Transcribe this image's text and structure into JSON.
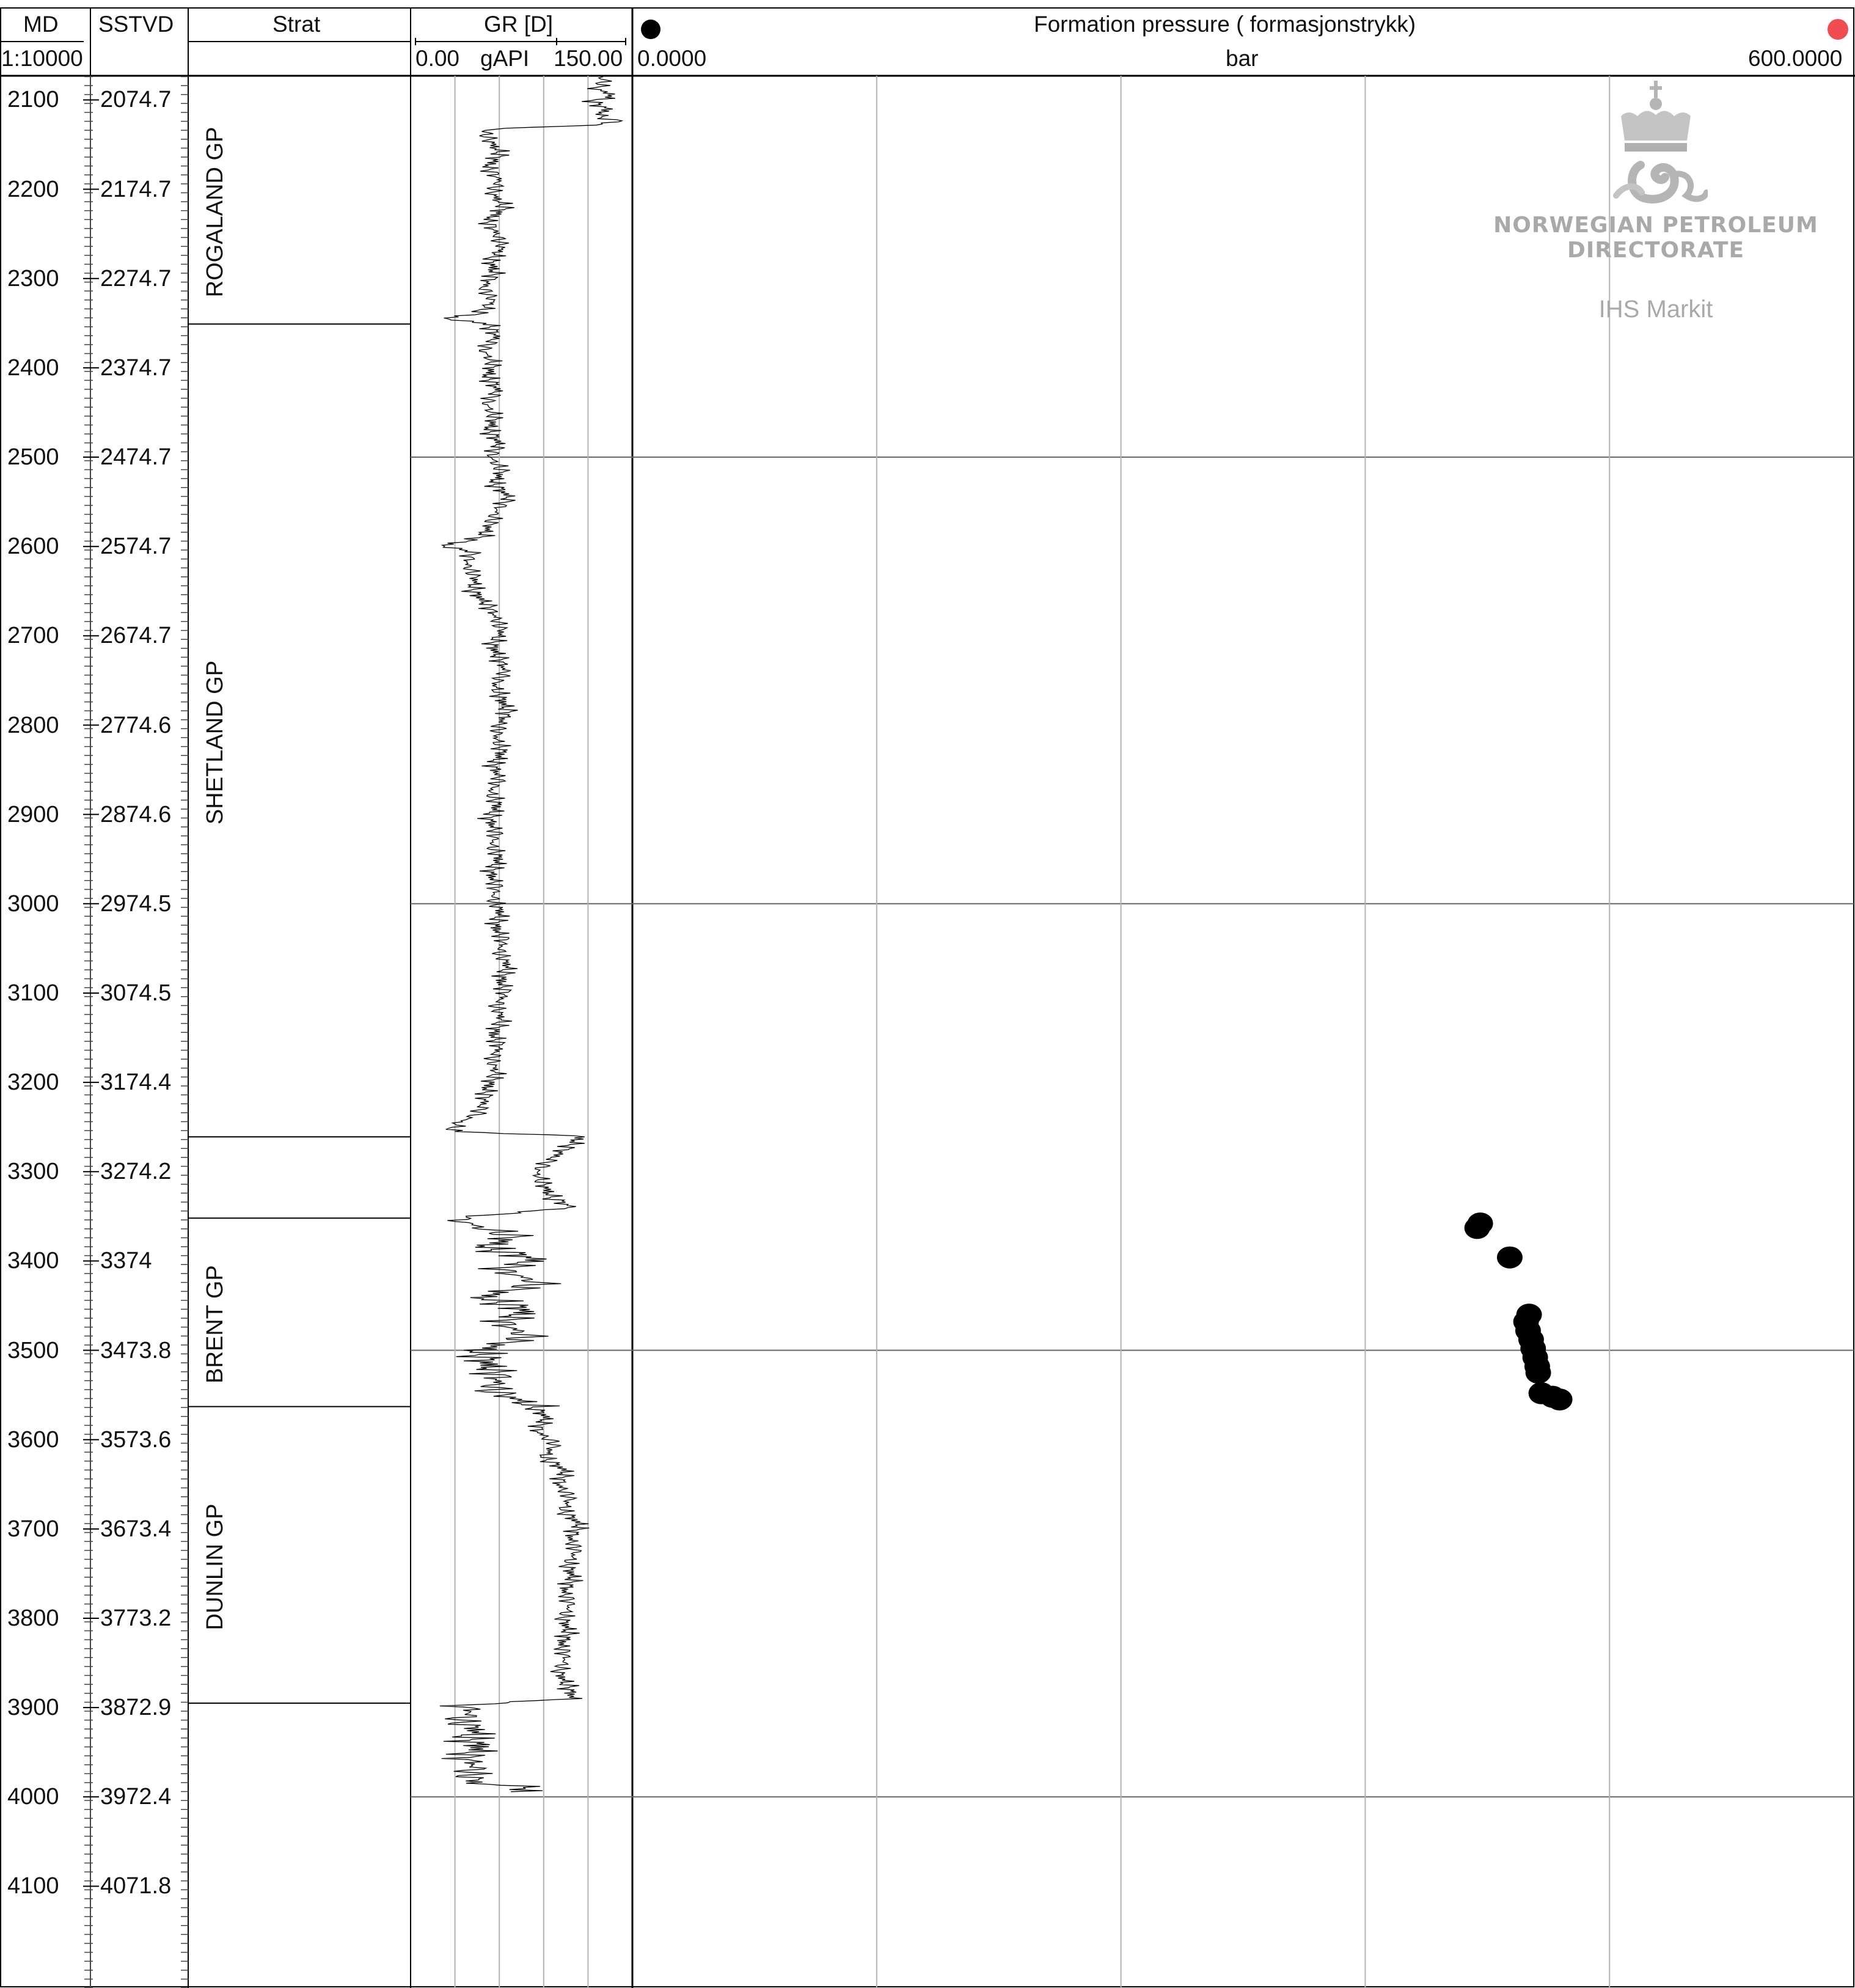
{
  "header": {
    "md": "MD",
    "scale": "1:10000",
    "sstvd": "SSTVD",
    "strat": "Strat",
    "gr_title": "GR [D]",
    "gr_min": "0.00",
    "gr_unit": "gAPI",
    "gr_max": "150.00",
    "fp_title": "Formation pressure ( formasjonstrykk)",
    "fp_min": "0.0000",
    "fp_unit": "bar",
    "fp_max": "600.0000"
  },
  "watermark": {
    "line1": "NORWEGIAN PETROLEUM",
    "line2": "DIRECTORATE",
    "line3": "IHS Markit"
  },
  "colors": {
    "fp_marker": "#000000",
    "fp_marker_right": "#ef4d4d",
    "grid_major": "#666666",
    "grid_minor": "#b3b3b3",
    "trace": "#000000"
  },
  "depth_rows": [
    {
      "md": "2100",
      "sstvd": "2074.7"
    },
    {
      "md": "2200",
      "sstvd": "2174.7"
    },
    {
      "md": "2300",
      "sstvd": "2274.7"
    },
    {
      "md": "2400",
      "sstvd": "2374.7"
    },
    {
      "md": "2500",
      "sstvd": "2474.7"
    },
    {
      "md": "2600",
      "sstvd": "2574.7"
    },
    {
      "md": "2700",
      "sstvd": "2674.7"
    },
    {
      "md": "2800",
      "sstvd": "2774.6"
    },
    {
      "md": "2900",
      "sstvd": "2874.6"
    },
    {
      "md": "3000",
      "sstvd": "2974.5"
    },
    {
      "md": "3100",
      "sstvd": "3074.5"
    },
    {
      "md": "3200",
      "sstvd": "3174.4"
    },
    {
      "md": "3300",
      "sstvd": "3274.2"
    },
    {
      "md": "3400",
      "sstvd": "3374"
    },
    {
      "md": "3500",
      "sstvd": "3473.8"
    },
    {
      "md": "3600",
      "sstvd": "3573.6"
    },
    {
      "md": "3700",
      "sstvd": "3673.4"
    },
    {
      "md": "3800",
      "sstvd": "3773.2"
    },
    {
      "md": "3900",
      "sstvd": "3872.9"
    },
    {
      "md": "4000",
      "sstvd": "3972.4"
    },
    {
      "md": "4100",
      "sstvd": "4071.8"
    }
  ],
  "chart_data": {
    "type": "scatter",
    "title": "Formation pressure ( formasjonstrykk)",
    "depth_range_md": [
      2073,
      4216
    ],
    "tracks": {
      "strat": {
        "units": [
          {
            "name": "ROGALAND GP",
            "top": 2073,
            "base": 2351
          },
          {
            "name": "",
            "top": 2351,
            "base": 3261
          },
          {
            "name": "SHETLAND GP",
            "top": 2351,
            "base": 3261
          },
          {
            "name": "",
            "top": 3261,
            "base": 3352
          },
          {
            "name": "BRENT GP",
            "top": 3352,
            "base": 3563
          },
          {
            "name": "DUNLIN GP",
            "top": 3563,
            "base": 3895
          }
        ],
        "boundaries": [
          2351,
          3261,
          3352,
          3563,
          3895
        ]
      },
      "gr": {
        "xlabel": "gAPI",
        "xlim": [
          0,
          150
        ],
        "profile": [
          [
            2073,
            129
          ],
          [
            2080,
            131
          ],
          [
            2088,
            125
          ],
          [
            2095,
            138
          ],
          [
            2102,
            122
          ],
          [
            2110,
            133
          ],
          [
            2118,
            127
          ],
          [
            2124,
            140
          ],
          [
            2128,
            128
          ],
          [
            2132,
            60
          ],
          [
            2135,
            50
          ],
          [
            2145,
            53
          ],
          [
            2160,
            61
          ],
          [
            2175,
            52
          ],
          [
            2190,
            60
          ],
          [
            2205,
            55
          ],
          [
            2220,
            64
          ],
          [
            2235,
            52
          ],
          [
            2250,
            58
          ],
          [
            2265,
            62
          ],
          [
            2280,
            54
          ],
          [
            2295,
            57
          ],
          [
            2310,
            49
          ],
          [
            2325,
            56
          ],
          [
            2340,
            45
          ],
          [
            2345,
            20
          ],
          [
            2350,
            52
          ],
          [
            2365,
            58
          ],
          [
            2380,
            49
          ],
          [
            2395,
            56
          ],
          [
            2410,
            52
          ],
          [
            2425,
            59
          ],
          [
            2440,
            51
          ],
          [
            2455,
            57
          ],
          [
            2470,
            53
          ],
          [
            2485,
            60
          ],
          [
            2500,
            54
          ],
          [
            2515,
            62
          ],
          [
            2530,
            56
          ],
          [
            2545,
            67
          ],
          [
            2560,
            58
          ],
          [
            2575,
            54
          ],
          [
            2590,
            48
          ],
          [
            2600,
            20
          ],
          [
            2605,
            42
          ],
          [
            2620,
            38
          ],
          [
            2635,
            44
          ],
          [
            2650,
            42
          ],
          [
            2665,
            52
          ],
          [
            2680,
            58
          ],
          [
            2695,
            62
          ],
          [
            2710,
            55
          ],
          [
            2725,
            60
          ],
          [
            2740,
            64
          ],
          [
            2755,
            57
          ],
          [
            2770,
            61
          ],
          [
            2785,
            66
          ],
          [
            2800,
            60
          ],
          [
            2815,
            58
          ],
          [
            2830,
            62
          ],
          [
            2845,
            56
          ],
          [
            2860,
            60
          ],
          [
            2875,
            54
          ],
          [
            2890,
            59
          ],
          [
            2905,
            53
          ],
          [
            2920,
            58
          ],
          [
            2935,
            55
          ],
          [
            2950,
            60
          ],
          [
            2965,
            54
          ],
          [
            2980,
            58
          ],
          [
            2995,
            56
          ],
          [
            3010,
            61
          ],
          [
            3025,
            57
          ],
          [
            3040,
            63
          ],
          [
            3055,
            60
          ],
          [
            3070,
            66
          ],
          [
            3085,
            61
          ],
          [
            3100,
            64
          ],
          [
            3115,
            58
          ],
          [
            3130,
            62
          ],
          [
            3145,
            56
          ],
          [
            3160,
            60
          ],
          [
            3175,
            55
          ],
          [
            3190,
            58
          ],
          [
            3205,
            52
          ],
          [
            3220,
            50
          ],
          [
            3235,
            46
          ],
          [
            3245,
            32
          ],
          [
            3255,
            28
          ],
          [
            3260,
            115
          ],
          [
            3268,
            110
          ],
          [
            3280,
            100
          ],
          [
            3290,
            92
          ],
          [
            3300,
            85
          ],
          [
            3315,
            90
          ],
          [
            3330,
            96
          ],
          [
            3340,
            110
          ],
          [
            3352,
            30
          ],
          [
            3360,
            42
          ],
          [
            3372,
            70
          ],
          [
            3385,
            50
          ],
          [
            3398,
            85
          ],
          [
            3410,
            60
          ],
          [
            3425,
            88
          ],
          [
            3440,
            48
          ],
          [
            3455,
            78
          ],
          [
            3470,
            62
          ],
          [
            3485,
            80
          ],
          [
            3500,
            45
          ],
          [
            3515,
            52
          ],
          [
            3530,
            60
          ],
          [
            3545,
            55
          ],
          [
            3560,
            80
          ],
          [
            3575,
            92
          ],
          [
            3590,
            85
          ],
          [
            3605,
            98
          ],
          [
            3620,
            90
          ],
          [
            3635,
            105
          ],
          [
            3650,
            100
          ],
          [
            3665,
            108
          ],
          [
            3680,
            103
          ],
          [
            3695,
            115
          ],
          [
            3710,
            108
          ],
          [
            3725,
            112
          ],
          [
            3740,
            106
          ],
          [
            3755,
            110
          ],
          [
            3770,
            104
          ],
          [
            3785,
            108
          ],
          [
            3800,
            103
          ],
          [
            3815,
            107
          ],
          [
            3830,
            102
          ],
          [
            3845,
            105
          ],
          [
            3860,
            100
          ],
          [
            3875,
            106
          ],
          [
            3890,
            110
          ],
          [
            3897,
            35
          ],
          [
            3905,
            42
          ],
          [
            3915,
            32
          ],
          [
            3925,
            46
          ],
          [
            3935,
            38
          ],
          [
            3945,
            48
          ],
          [
            3955,
            36
          ],
          [
            3965,
            44
          ],
          [
            3975,
            40
          ],
          [
            3985,
            45
          ],
          [
            3990,
            88
          ],
          [
            3995,
            60
          ]
        ]
      },
      "formation_pressure": {
        "xlabel": "bar",
        "xlim": [
          0,
          600
        ],
        "points": [
          {
            "pressure": 415.0,
            "md": 3363
          },
          {
            "pressure": 416.5,
            "md": 3358
          },
          {
            "pressure": 431.0,
            "md": 3396
          },
          {
            "pressure": 440.5,
            "md": 3460
          },
          {
            "pressure": 439.0,
            "md": 3468
          },
          {
            "pressure": 440.0,
            "md": 3478
          },
          {
            "pressure": 441.5,
            "md": 3488
          },
          {
            "pressure": 442.5,
            "md": 3498
          },
          {
            "pressure": 443.5,
            "md": 3508
          },
          {
            "pressure": 444.5,
            "md": 3518
          },
          {
            "pressure": 445.0,
            "md": 3525
          },
          {
            "pressure": 446.5,
            "md": 3548
          },
          {
            "pressure": 452.0,
            "md": 3552
          },
          {
            "pressure": 455.5,
            "md": 3555
          }
        ]
      }
    }
  }
}
